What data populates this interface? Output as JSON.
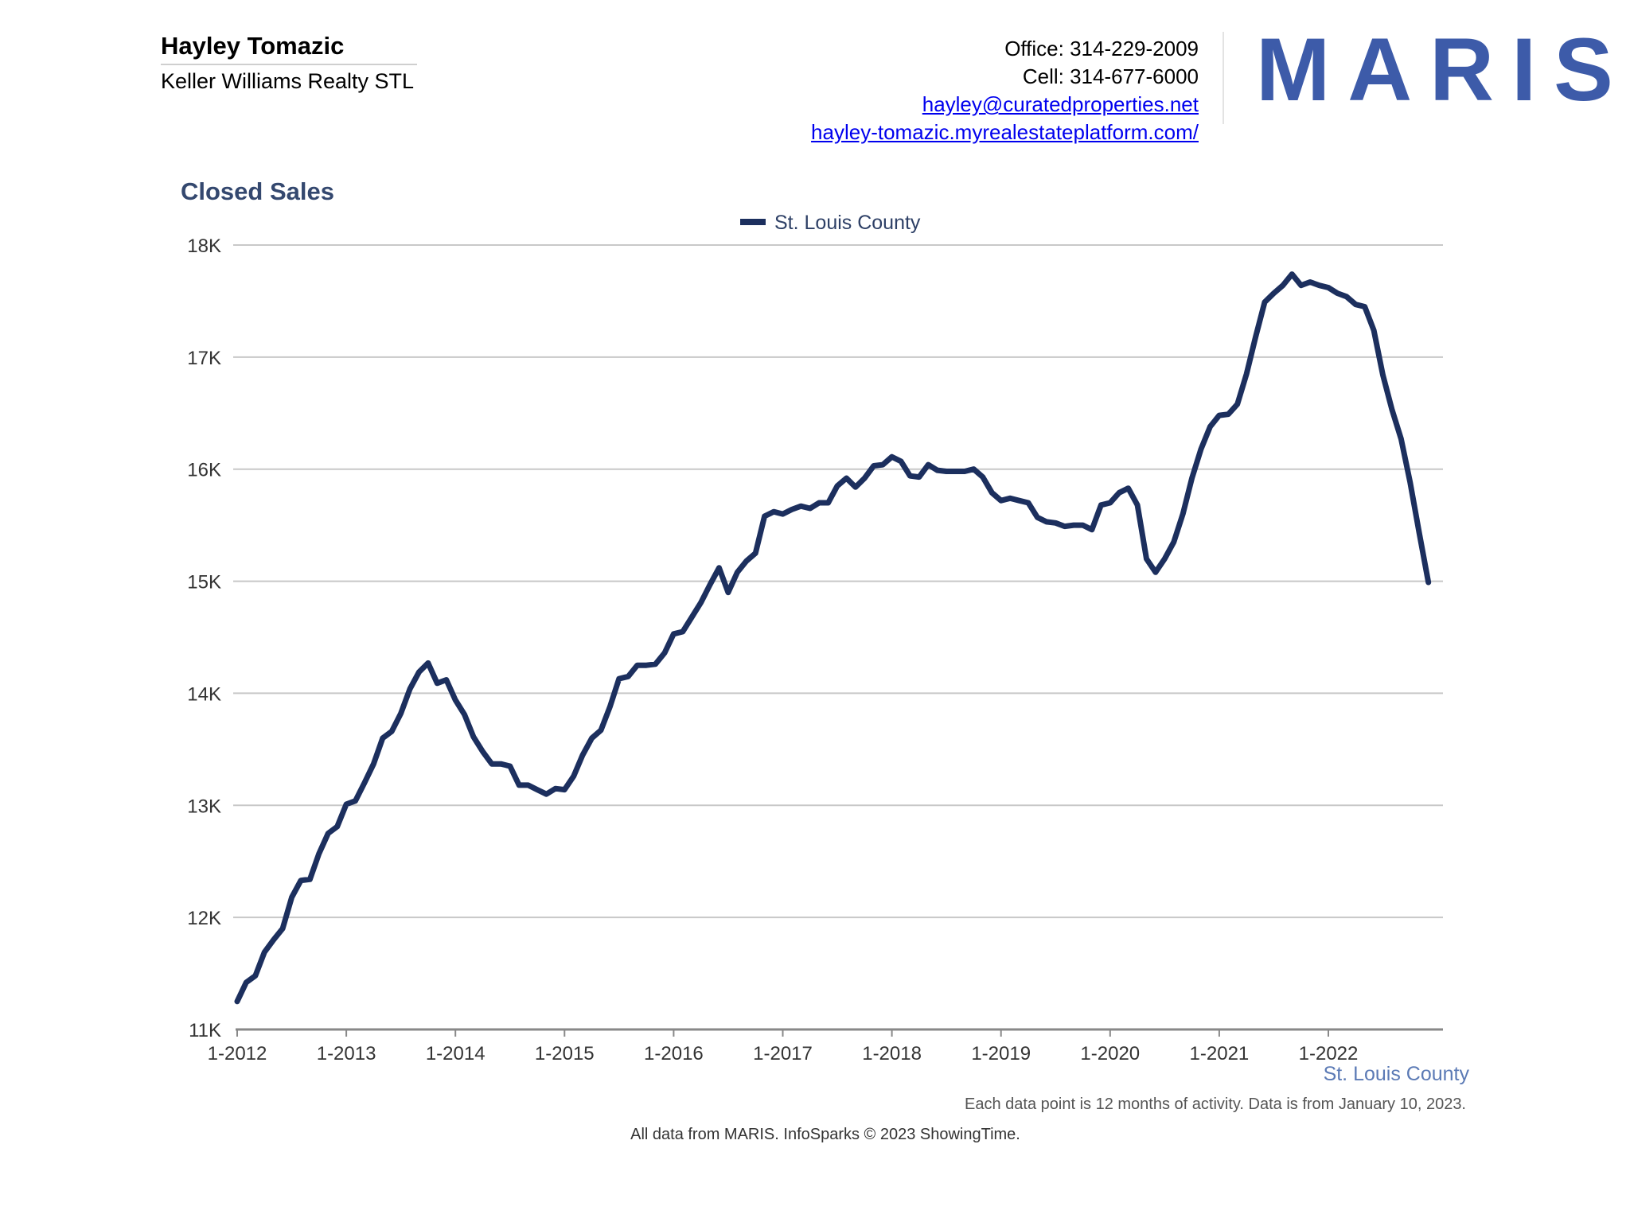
{
  "header": {
    "agent_name": "Hayley Tomazic",
    "company": "Keller Williams Realty STL",
    "office": "Office: 314-229-2009",
    "cell": "Cell: 314-677-6000",
    "email": "hayley@curatedproperties.net",
    "website": "hayley-tomazic.myrealestateplatform.com/",
    "logo_text": "MARIS",
    "logo_color": "#3d5ba9"
  },
  "chart_data": {
    "type": "line",
    "title": "Closed Sales",
    "legend_position": "top-center",
    "grid": true,
    "ylim": [
      11000,
      18000
    ],
    "y_ticks": [
      11000,
      12000,
      13000,
      14000,
      15000,
      16000,
      17000,
      18000
    ],
    "y_tick_labels": [
      "11K",
      "12K",
      "13K",
      "14K",
      "15K",
      "16K",
      "17K",
      "18K"
    ],
    "x_tick_labels": [
      "1-2012",
      "1-2013",
      "1-2014",
      "1-2015",
      "1-2016",
      "1-2017",
      "1-2018",
      "1-2019",
      "1-2020",
      "1-2021",
      "1-2022"
    ],
    "x_start": "2012-01",
    "x_end": "2022-12",
    "x_axis_caption": "St. Louis County",
    "footnote": "Each data point is 12 months of activity. Data is from January 10, 2023.",
    "credit": "All data from MARIS. InfoSparks © 2023 ShowingTime.",
    "series": [
      {
        "name": "St. Louis County",
        "color": "#1c2f5e",
        "values": [
          11250,
          11420,
          11480,
          11690,
          11800,
          11900,
          12180,
          12330,
          12340,
          12570,
          12750,
          12810,
          13010,
          13040,
          13200,
          13370,
          13600,
          13660,
          13820,
          14040,
          14190,
          14270,
          14090,
          14120,
          13940,
          13810,
          13610,
          13480,
          13370,
          13370,
          13350,
          13180,
          13180,
          13140,
          13100,
          13150,
          13140,
          13260,
          13450,
          13600,
          13670,
          13880,
          14130,
          14150,
          14250,
          14250,
          14260,
          14360,
          14530,
          14550,
          14680,
          14810,
          14970,
          15120,
          14900,
          15080,
          15180,
          15250,
          15580,
          15620,
          15600,
          15640,
          15670,
          15650,
          15700,
          15700,
          15850,
          15920,
          15840,
          15920,
          16030,
          16040,
          16110,
          16070,
          15940,
          15930,
          16040,
          15990,
          15980,
          15980,
          15980,
          16000,
          15930,
          15790,
          15720,
          15740,
          15720,
          15700,
          15570,
          15530,
          15520,
          15490,
          15500,
          15500,
          15460,
          15680,
          15700,
          15790,
          15830,
          15680,
          15200,
          15080,
          15200,
          15350,
          15600,
          15920,
          16180,
          16380,
          16480,
          16490,
          16580,
          16850,
          17180,
          17490,
          17570,
          17640,
          17740,
          17640,
          17670,
          17640,
          17620,
          17570,
          17540,
          17470,
          17450,
          17240,
          16840,
          16530,
          16270,
          15880,
          15430,
          14990
        ]
      }
    ]
  }
}
